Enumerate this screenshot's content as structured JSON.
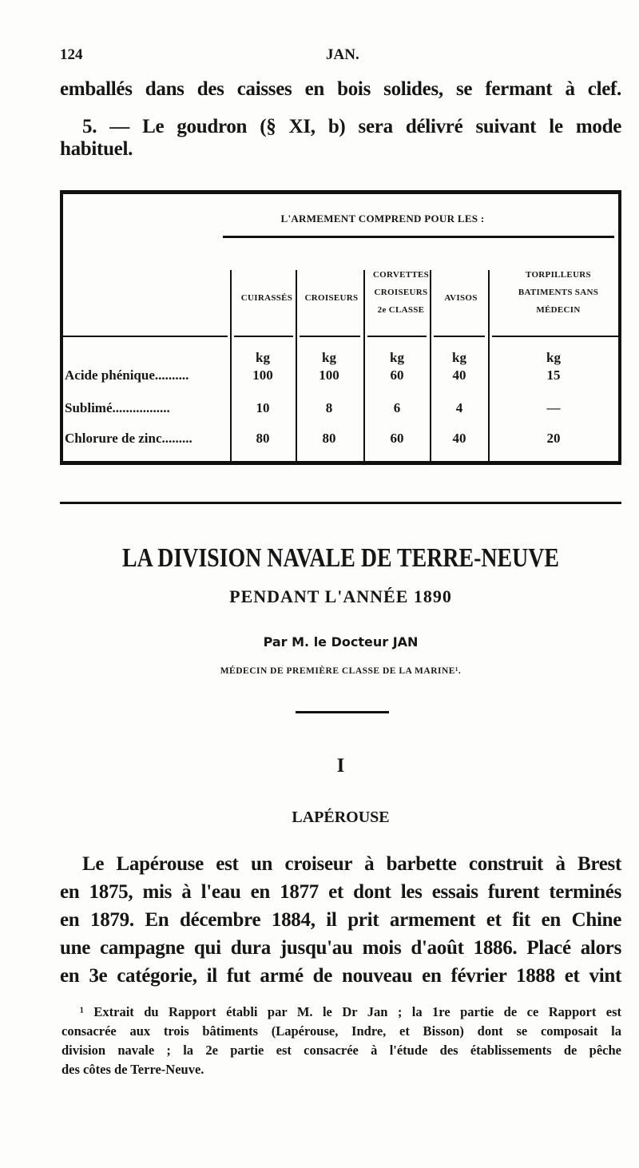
{
  "header": {
    "page_number": "124",
    "running_title": "JAN."
  },
  "intro": {
    "line1": "emballés dans des caisses en bois solides, se fermant à clef.",
    "item5_line1": "5. — Le goudron (§ XI, b) sera délivré suivant le mode",
    "item5_line2": "habituel."
  },
  "table": {
    "caption": "L'ARMEMENT COMPREND POUR LES :",
    "columns": [
      "CUIRASSÉS",
      "CROISEURS",
      "CORVETTES CROISEURS 2e CLASSE",
      "AVISOS",
      "TORPILLEURS BATIMENTS SANS MÉDECIN"
    ],
    "unit": "kg",
    "rows": [
      {
        "label": "Acide phénique..........",
        "values": [
          "100",
          "100",
          "60",
          "40",
          "15"
        ]
      },
      {
        "label": "Sublimé.................",
        "values": [
          "10",
          "8",
          "6",
          "4",
          "—"
        ]
      },
      {
        "label": "Chlorure de zinc.........",
        "values": [
          "80",
          "80",
          "60",
          "40",
          "20"
        ]
      }
    ]
  },
  "article": {
    "title": "LA DIVISION NAVALE DE TERRE-NEUVE",
    "subtitle": "PENDANT L'ANNÉE 1890",
    "byline": "Par M. le Docteur JAN",
    "author_role": "MÉDECIN DE PREMIÈRE CLASSE DE LA MARINE¹.",
    "section_number": "I",
    "section_title": "LAPÉROUSE",
    "paragraph_lines": [
      "Le Lapérouse est un croiseur à barbette construit à Brest",
      "en 1875, mis à l'eau en 1877 et dont les essais furent terminés",
      "en 1879. En décembre 1884, il prit armement et fit en Chine",
      "une campagne qui dura jusqu'au mois d'août 1886. Placé alors",
      "en 3e catégorie, il fut armé de nouveau en février 1888 et vint"
    ]
  },
  "footnote": {
    "lines": [
      "¹ Extrait du Rapport établi par M. le Dr Jan ; la 1re partie de ce Rapport est",
      "consacrée aux trois bâtiments (Lapérouse, Indre, et Bisson) dont se composait la",
      "division navale ; la 2e partie est consacrée à l'étude des établissements de pêche",
      "des côtes de Terre-Neuve."
    ]
  }
}
